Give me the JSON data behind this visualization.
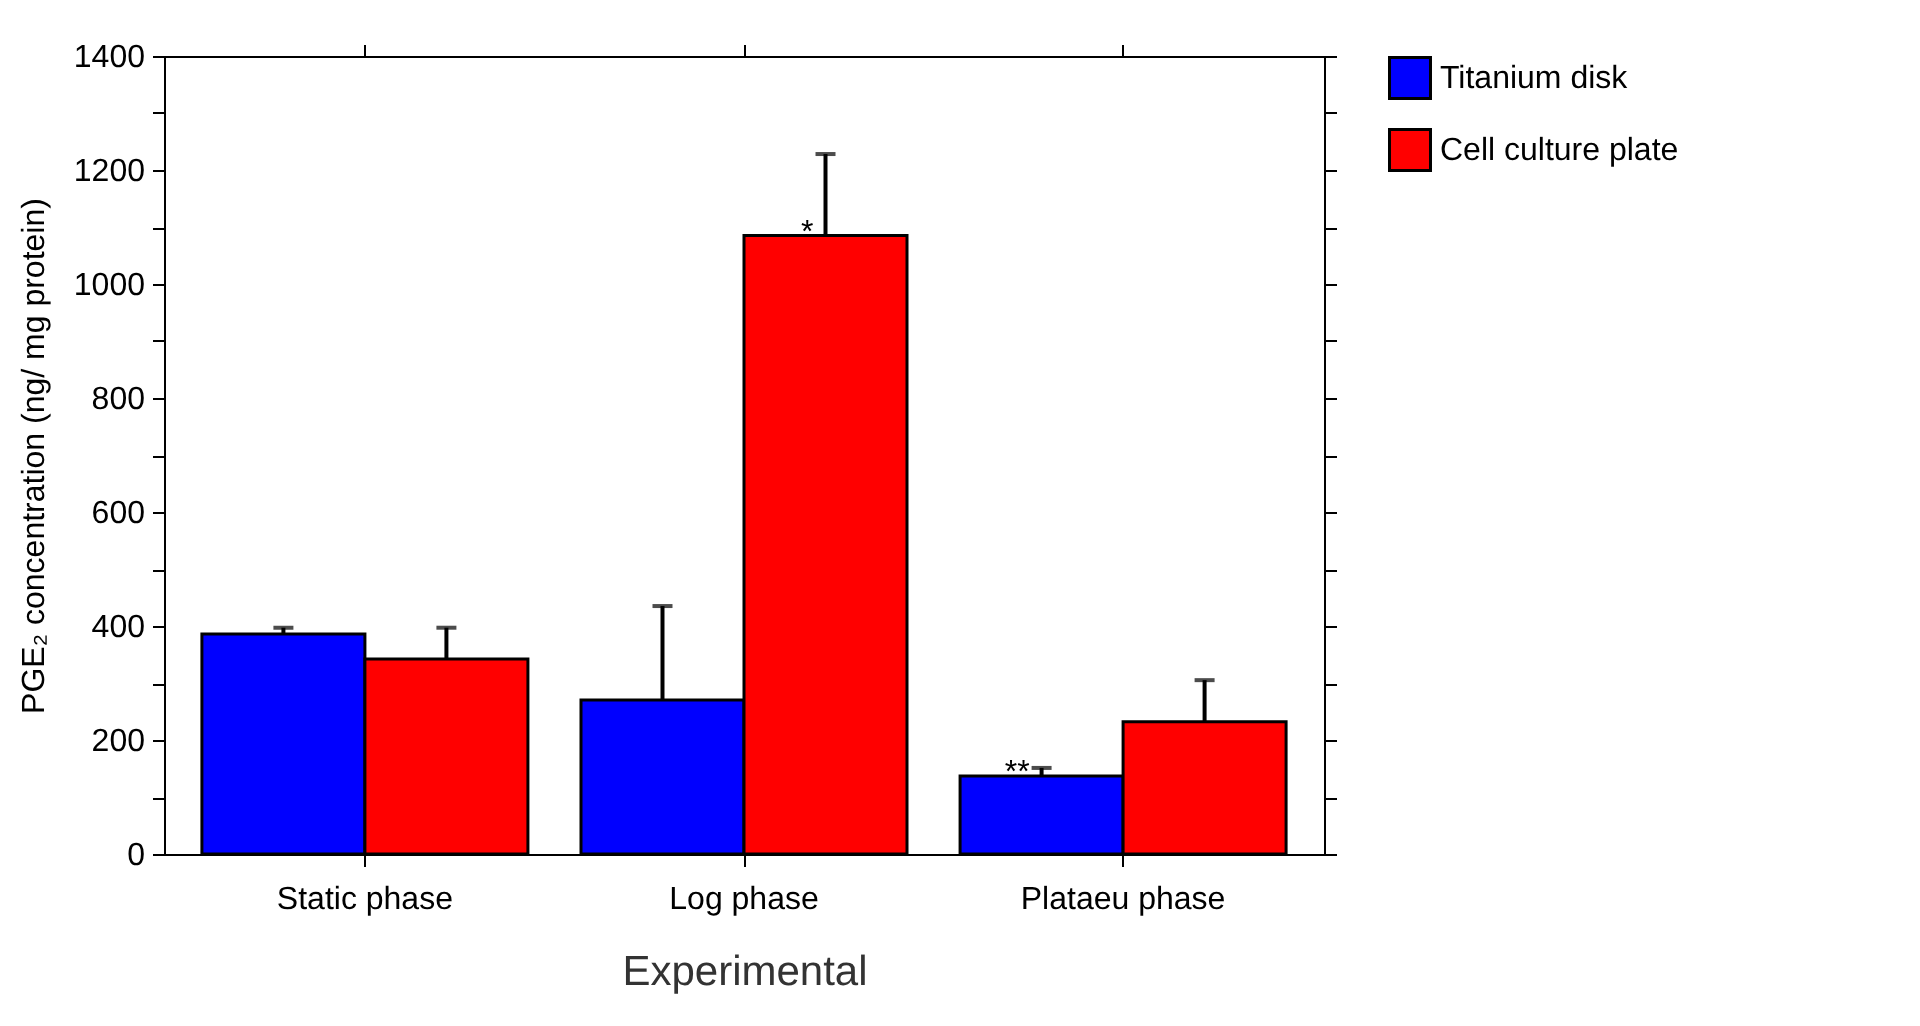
{
  "chart_data": {
    "type": "bar",
    "xlabel": "Experimental",
    "ylabel": "PGE₂ concentration (ng/ mg protein)",
    "categories": [
      "Static phase",
      "Log phase",
      "Plataeu phase"
    ],
    "series": [
      {
        "name": "Titanium disk",
        "color": "#0000ff",
        "values": [
          386,
          270,
          137
        ],
        "errors": [
          [
            386,
            397
          ],
          [
            270,
            435
          ],
          [
            137,
            151
          ]
        ]
      },
      {
        "name": "Cell culture plate",
        "color": "#ff0000",
        "values": [
          342,
          1085,
          232
        ],
        "errors": [
          [
            342,
            397
          ],
          [
            1085,
            1228
          ],
          [
            232,
            305
          ]
        ]
      }
    ],
    "ylim": [
      0,
      1400
    ],
    "yticks": [
      0,
      {
        "value": 100,
        "label": null
      },
      200,
      {
        "value": 300,
        "label": null
      },
      400,
      {
        "value": 500,
        "label": null
      },
      600,
      {
        "value": 700,
        "label": null
      },
      800,
      {
        "value": 900,
        "label": null
      },
      1000,
      {
        "value": 1100,
        "label": null
      },
      1200,
      {
        "value": 1300,
        "label": null
      },
      1400
    ],
    "annotations": [
      {
        "text": "*",
        "x": "Log phase",
        "y": 1085
      },
      {
        "text": "**",
        "x": "Plataeu phase",
        "y": 137
      }
    ],
    "legend": "right",
    "grid": false
  }
}
